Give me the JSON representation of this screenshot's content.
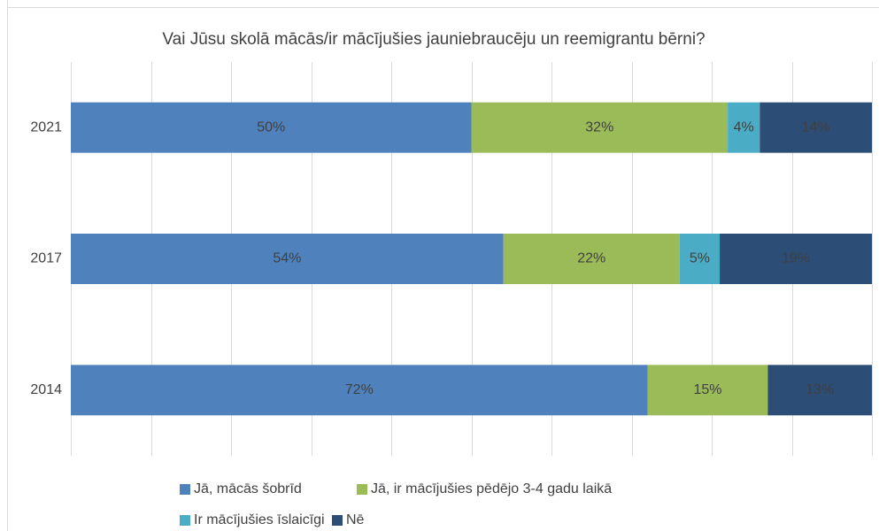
{
  "chart_data": {
    "type": "bar",
    "orientation": "horizontal",
    "stacked": true,
    "title": "Vai Jūsu skolā mācās/ir mācījušies jauniebraucēju un reemigrantu bērni?",
    "categories": [
      "2021",
      "2017",
      "2014"
    ],
    "series": [
      {
        "name": "Jā, mācās šobrīd",
        "color": "#4f81bd",
        "values": [
          50,
          54,
          72
        ],
        "value_labels": [
          "50%",
          "54%",
          "72%"
        ]
      },
      {
        "name": "Jā, ir mācījušies pēdējo 3-4 gadu laikā",
        "color": "#9bbb59",
        "values": [
          32,
          22,
          15
        ],
        "value_labels": [
          "32%",
          "22%",
          "15%"
        ]
      },
      {
        "name": "Ir mācījušies īslaicīgi",
        "color": "#4bacc6",
        "values": [
          4,
          5,
          null
        ],
        "value_labels": [
          "4%",
          "5%",
          null
        ]
      },
      {
        "name": "Nē",
        "color": "#2c4d75",
        "values": [
          14,
          19,
          13
        ],
        "value_labels": [
          "14%",
          "19%",
          "13%"
        ]
      }
    ],
    "xlim": [
      0,
      100
    ],
    "xticks": [
      0,
      10,
      20,
      30,
      40,
      50,
      60,
      70,
      80,
      90,
      100
    ],
    "grid": true,
    "legend": "bottom"
  }
}
